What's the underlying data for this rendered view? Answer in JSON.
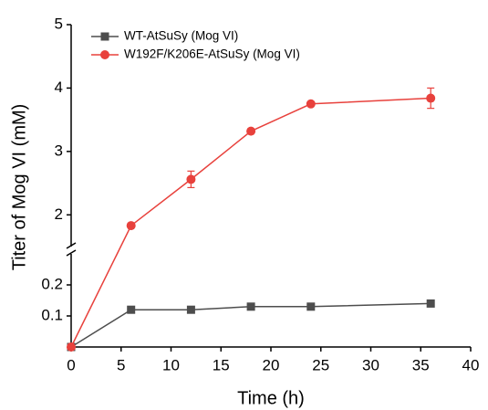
{
  "chart_data": {
    "type": "line",
    "x_label": "Time (h)",
    "y_label": "Titer of Mog VI (mM)",
    "x": [
      0,
      6,
      12,
      18,
      24,
      36
    ],
    "xlim": [
      0,
      40
    ],
    "xticks": [
      0,
      5,
      10,
      15,
      20,
      25,
      30,
      35,
      40
    ],
    "y_segments": [
      {
        "ylim": [
          0,
          0.3
        ],
        "yticks": [
          0.1,
          0.2
        ]
      },
      {
        "ylim": [
          1.5,
          5
        ],
        "yticks": [
          2,
          3,
          4,
          5
        ]
      }
    ],
    "legend": "upper left",
    "series": [
      {
        "name": "WT-AtSuSy (Mog VI)",
        "color": "#4d4d4d",
        "marker": "square",
        "values": [
          0,
          0.12,
          0.12,
          0.13,
          0.13,
          0.14
        ]
      },
      {
        "name": "W192F/K206E-AtSuSy (Mog VI)",
        "color": "#e8413c",
        "marker": "circle",
        "values": [
          0,
          1.83,
          2.56,
          3.32,
          3.75,
          3.84
        ],
        "errors": [
          null,
          null,
          0.13,
          null,
          null,
          0.16
        ]
      }
    ]
  }
}
